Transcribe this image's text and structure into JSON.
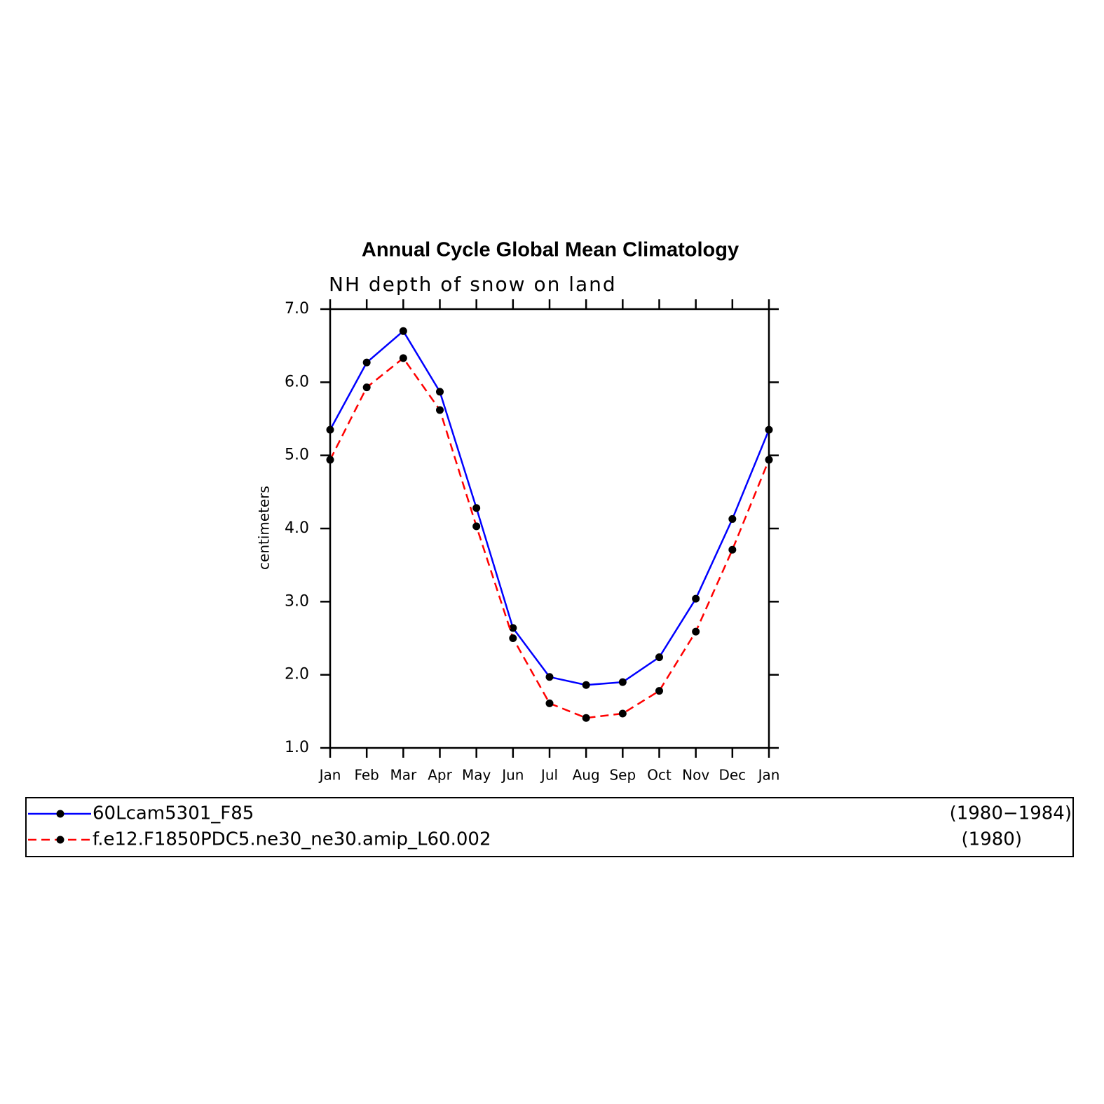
{
  "chart_data": {
    "type": "line",
    "title": "Annual Cycle Global Mean Climatology",
    "subtitle": "NH depth of snow on land",
    "y_label": "centimeters",
    "categories": [
      "Jan",
      "Feb",
      "Mar",
      "Apr",
      "May",
      "Jun",
      "Jul",
      "Aug",
      "Sep",
      "Oct",
      "Nov",
      "Dec",
      "Jan"
    ],
    "ylim": [
      1.0,
      7.0
    ],
    "yticks": [
      {
        "value": 1,
        "label": "1.0"
      },
      {
        "value": 2,
        "label": "2.0"
      },
      {
        "value": 3,
        "label": "3.0"
      },
      {
        "value": 4,
        "label": "4.0"
      },
      {
        "value": 5,
        "label": "5.0"
      },
      {
        "value": 6,
        "label": "6.0"
      },
      {
        "value": 7,
        "label": "7.0"
      }
    ],
    "series": [
      {
        "name": "60Lcam5301_F85",
        "period": "(1980−1984)",
        "color": "#0000ff",
        "dash": false,
        "values": [
          5.35,
          6.27,
          6.7,
          5.87,
          4.28,
          2.64,
          1.97,
          1.86,
          1.9,
          2.24,
          3.04,
          4.13,
          5.35
        ]
      },
      {
        "name": "f.e12.F1850PDC5.ne30_ne30.amip_L60.002",
        "period": "(1980)",
        "color": "#ff0000",
        "dash": true,
        "values": [
          4.94,
          5.93,
          6.33,
          5.62,
          4.03,
          2.5,
          1.61,
          1.41,
          1.47,
          1.78,
          2.59,
          3.71,
          4.94
        ]
      }
    ]
  }
}
